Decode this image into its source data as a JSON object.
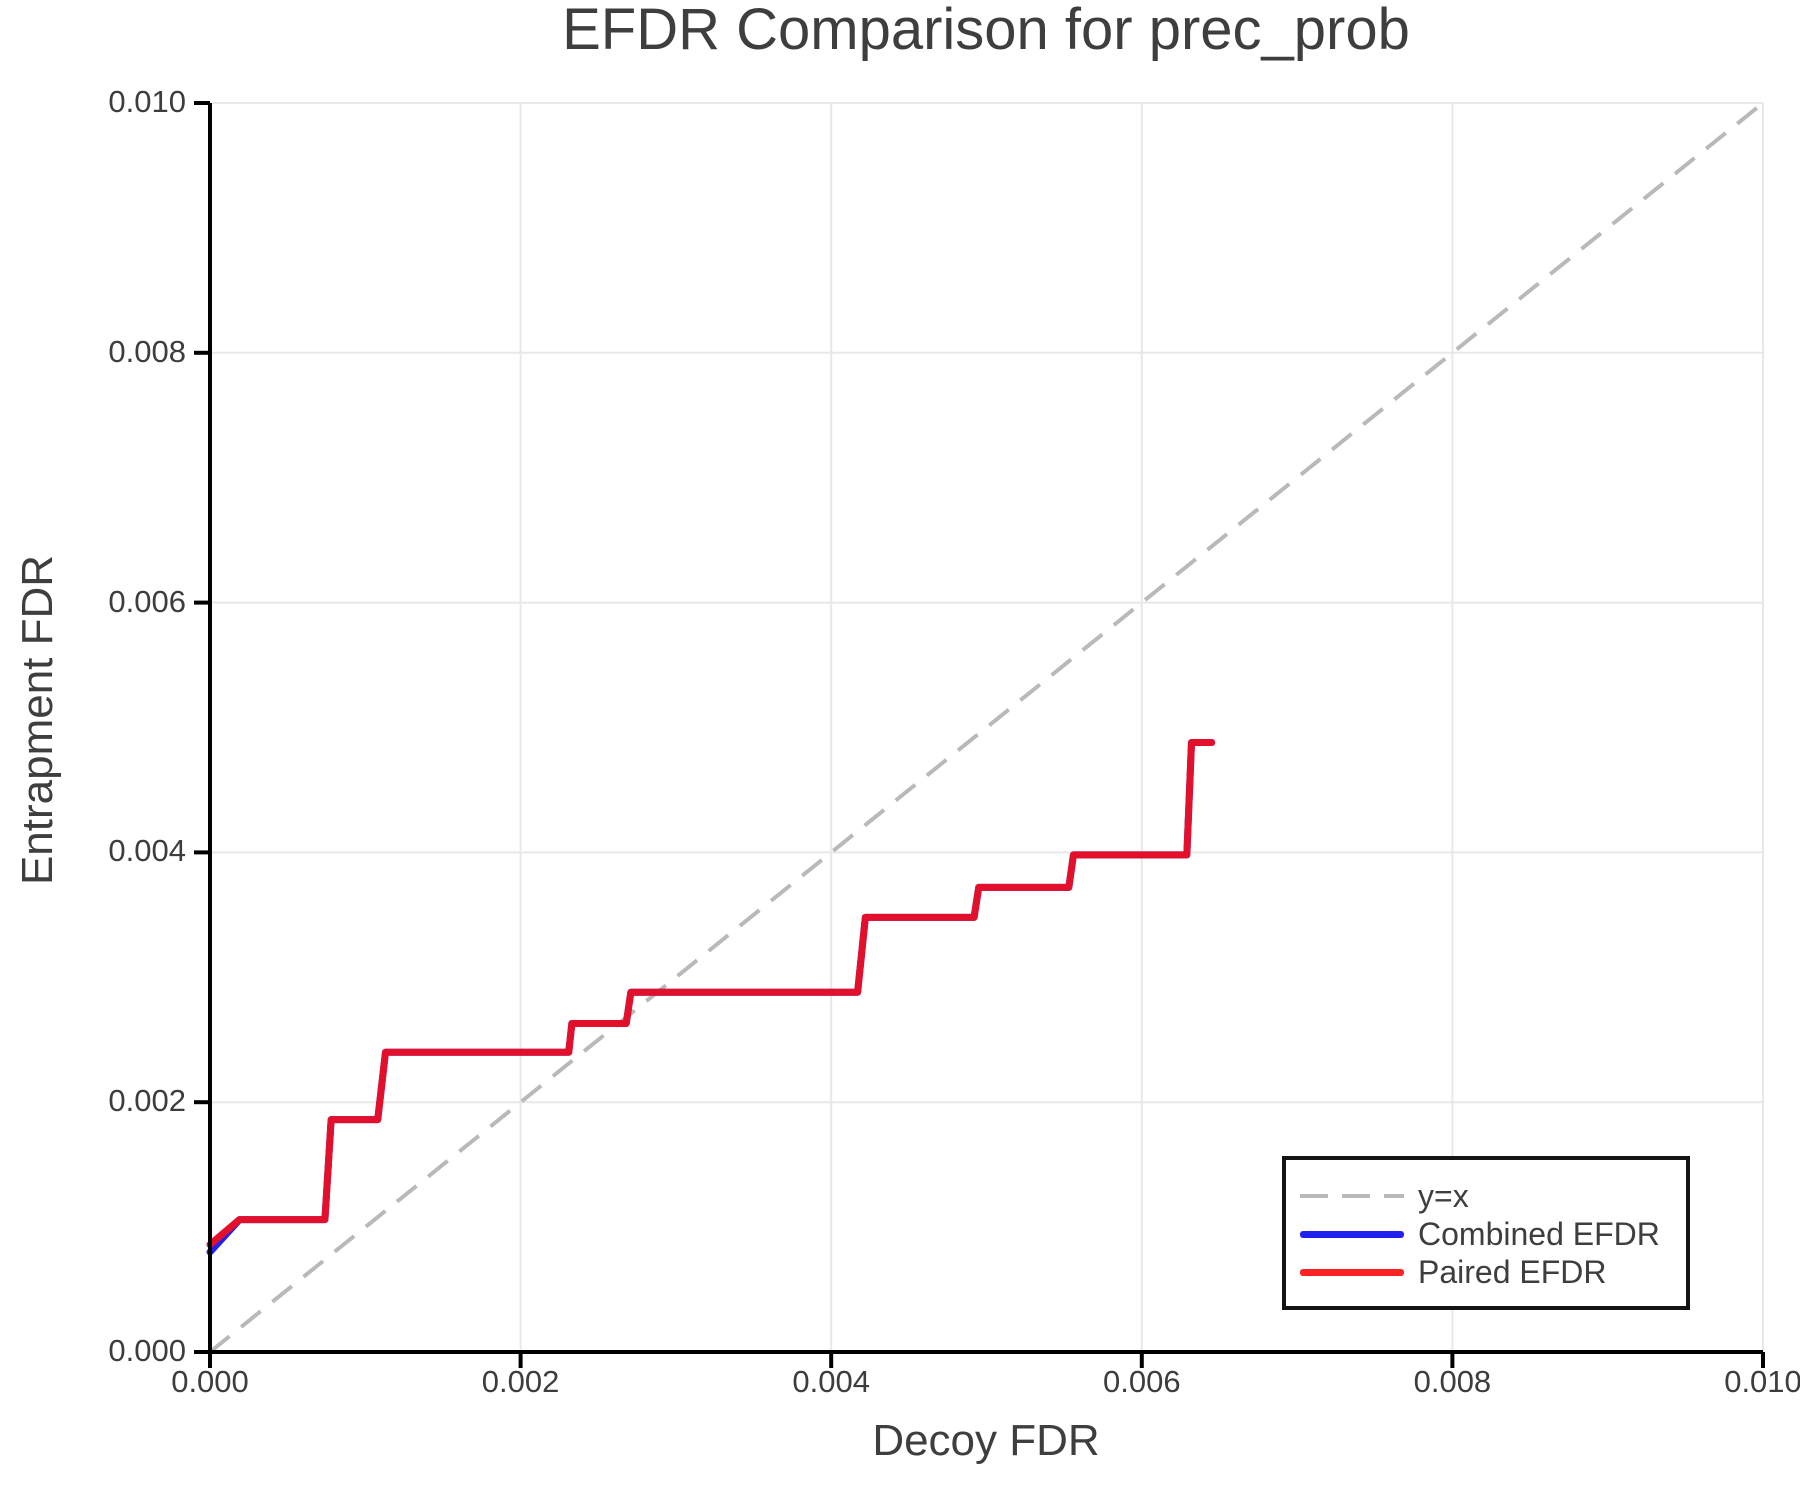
{
  "colors": {
    "background": "#ffffff",
    "gridline": "#e8e8e8",
    "spine": "#000000",
    "text": "#3d3d3d"
  },
  "chart_data": {
    "type": "line",
    "title": "EFDR Comparison for prec_prob",
    "xlabel": "Decoy FDR",
    "ylabel": "Entrapment FDR",
    "xlim": [
      0,
      0.01
    ],
    "ylim": [
      0,
      0.01
    ],
    "grid": true,
    "x_ticks": {
      "values": [
        0,
        0.002,
        0.004,
        0.006,
        0.008,
        0.01
      ],
      "labels": [
        "0.000",
        "0.002",
        "0.004",
        "0.006",
        "0.008",
        "0.010"
      ]
    },
    "y_ticks": {
      "values": [
        0,
        0.002,
        0.004,
        0.006,
        0.008,
        0.01
      ],
      "labels": [
        "0.000",
        "0.002",
        "0.004",
        "0.006",
        "0.008",
        "0.010"
      ]
    },
    "legend": {
      "position": "lower-right",
      "entries": [
        {
          "label": "y=x",
          "color": "#b9b9b9",
          "style": "dashed"
        },
        {
          "label": "Combined EFDR",
          "color": "#2222f0",
          "style": "solid"
        },
        {
          "label": "Paired EFDR",
          "color": "#fb2222",
          "style": "solid"
        }
      ]
    },
    "series": [
      {
        "name": "y=x",
        "style": "dashed",
        "color": "#b9b9b9",
        "width": 4,
        "x": [
          0,
          0.01
        ],
        "y": [
          0,
          0.01
        ]
      },
      {
        "name": "Combined EFDR",
        "style": "solid",
        "color": "#2323e6",
        "width": 7,
        "x": [
          0,
          0.00019,
          0.00074,
          0.00078,
          0.00108,
          0.00113,
          0.00231,
          0.00233,
          0.00268,
          0.00271,
          0.00417,
          0.00422,
          0.00492,
          0.00495,
          0.00553,
          0.00556,
          0.00629,
          0.00632,
          0.00645
        ],
        "y": [
          0.0008,
          0.00106,
          0.00106,
          0.00186,
          0.00186,
          0.0024,
          0.0024,
          0.00263,
          0.00263,
          0.00288,
          0.00288,
          0.00348,
          0.00348,
          0.00372,
          0.00372,
          0.00398,
          0.00398,
          0.00488,
          0.00488
        ]
      },
      {
        "name": "Paired EFDR",
        "style": "solid",
        "color": "#e3102c",
        "width": 7,
        "x": [
          0,
          0.00019,
          0.00074,
          0.00078,
          0.00108,
          0.00113,
          0.00231,
          0.00233,
          0.00268,
          0.00271,
          0.00417,
          0.00422,
          0.00492,
          0.00495,
          0.00553,
          0.00556,
          0.00629,
          0.00632,
          0.00645
        ],
        "y": [
          0.00086,
          0.00106,
          0.00106,
          0.00186,
          0.00186,
          0.0024,
          0.0024,
          0.00263,
          0.00263,
          0.00288,
          0.00288,
          0.00348,
          0.00348,
          0.00372,
          0.00372,
          0.00398,
          0.00398,
          0.00488,
          0.00488
        ]
      }
    ]
  }
}
